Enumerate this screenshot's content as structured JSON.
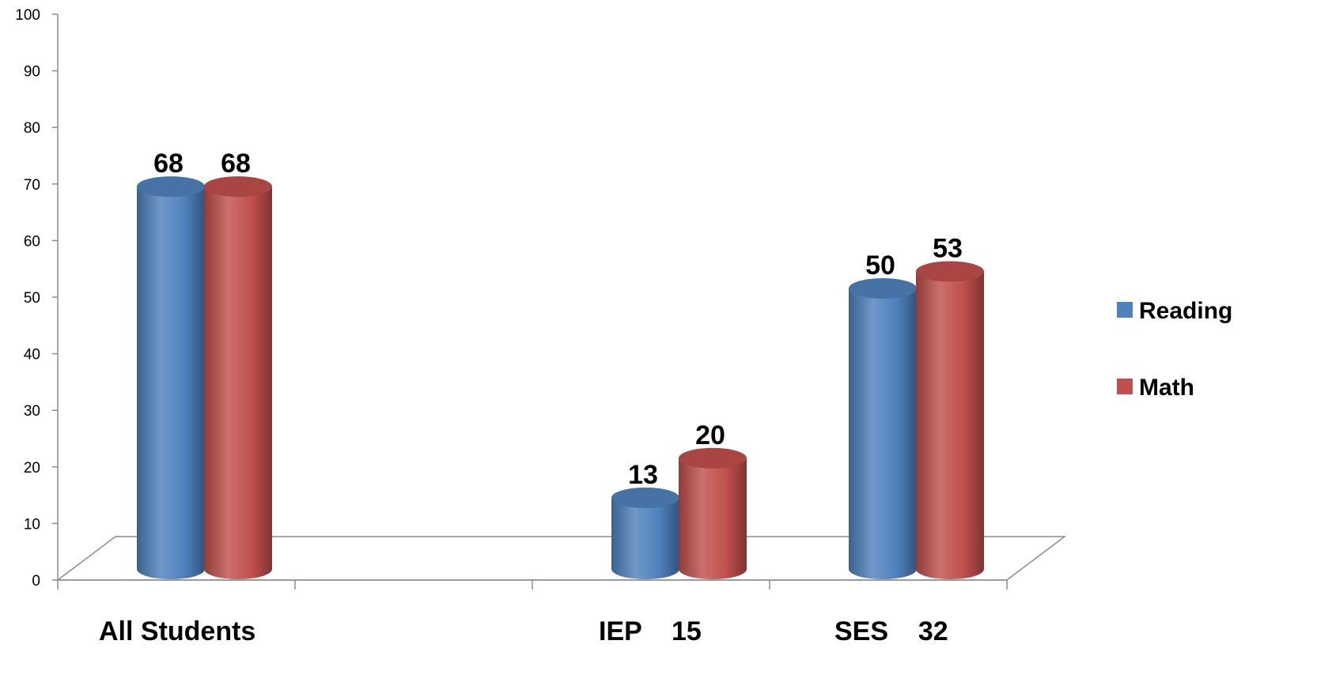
{
  "chart_data": {
    "type": "bar",
    "style": "3d-cylinder",
    "categories": [
      "All Students",
      "",
      "IEP    15",
      "SES    32"
    ],
    "series": [
      {
        "name": "Reading",
        "values": [
          68,
          null,
          13,
          50
        ],
        "color": "#4f81bd"
      },
      {
        "name": "Math",
        "values": [
          68,
          null,
          20,
          53
        ],
        "color": "#c0504d"
      }
    ],
    "data_labels": {
      "Reading": [
        "68",
        "",
        "13",
        "50"
      ],
      "Math": [
        "68",
        "",
        "20",
        "53"
      ]
    },
    "yticks": [
      "0",
      "10",
      "20",
      "30",
      "40",
      "50",
      "60",
      "70",
      "80",
      "90",
      "100"
    ],
    "ylim": [
      0,
      100
    ],
    "grid": false,
    "legend": "right"
  }
}
